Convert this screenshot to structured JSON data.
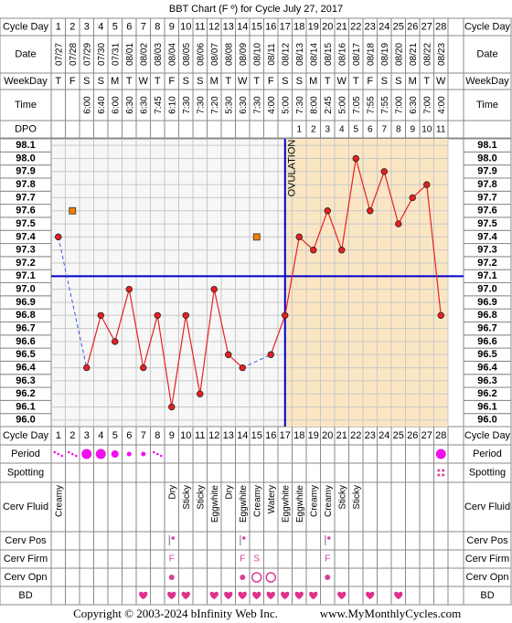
{
  "chart_data": {
    "type": "line",
    "title": "BBT Chart (F º) for Cycle July 27, 2017",
    "labels": {
      "cycle_day": "Cycle Day",
      "date": "Date",
      "weekday": "WeekDay",
      "time": "Time",
      "dpo": "DPO",
      "period": "Period",
      "spotting": "Spotting",
      "cerv_fluid": "Cerv Fluid",
      "cerv_pos": "Cerv Pos",
      "cerv_firm": "Cerv Firm",
      "cerv_opn": "Cerv Opn",
      "bd": "BD"
    },
    "categories": [
      1,
      2,
      3,
      4,
      5,
      6,
      7,
      8,
      9,
      10,
      11,
      12,
      13,
      14,
      15,
      16,
      17,
      18,
      19,
      20,
      21,
      22,
      23,
      24,
      25,
      26,
      27,
      28
    ],
    "dates": [
      "07/27",
      "07/28",
      "07/29",
      "07/30",
      "07/31",
      "08/01",
      "08/02",
      "08/03",
      "08/04",
      "08/05",
      "08/06",
      "08/07",
      "08/08",
      "08/09",
      "08/10",
      "08/11",
      "08/12",
      "08/13",
      "08/14",
      "08/15",
      "08/16",
      "08/17",
      "08/18",
      "08/19",
      "08/20",
      "08/21",
      "08/22",
      "08/23"
    ],
    "weekdays": [
      "T",
      "F",
      "S",
      "S",
      "M",
      "T",
      "W",
      "T",
      "F",
      "S",
      "S",
      "M",
      "T",
      "W",
      "T",
      "F",
      "S",
      "S",
      "M",
      "T",
      "W",
      "T",
      "F",
      "S",
      "S",
      "M",
      "T",
      "W"
    ],
    "times": [
      null,
      null,
      "6:00",
      "6:40",
      "6:00",
      "6:30",
      "6:30",
      "7:45",
      "6:10",
      "7:30",
      "7:30",
      "7:20",
      "5:30",
      "6:30",
      "7:30",
      "4:00",
      "5:00",
      "7:30",
      "8:00",
      "2:45",
      "5:00",
      "7:05",
      "7:55",
      "7:55",
      "7:00",
      "6:30",
      "7:00",
      "4:00"
    ],
    "dpo": [
      null,
      null,
      null,
      null,
      null,
      null,
      null,
      null,
      null,
      null,
      null,
      null,
      null,
      null,
      null,
      null,
      null,
      1,
      2,
      3,
      4,
      5,
      6,
      7,
      8,
      9,
      10,
      11
    ],
    "values": [
      97.4,
      null,
      96.4,
      96.8,
      96.6,
      97.0,
      96.4,
      96.8,
      96.1,
      96.8,
      96.2,
      97.0,
      96.5,
      96.4,
      null,
      96.5,
      96.8,
      97.4,
      97.3,
      97.6,
      97.3,
      98.0,
      97.6,
      97.9,
      97.5,
      97.7,
      97.8,
      96.8
    ],
    "color": "#e82020",
    "discarded": [
      null,
      97.6,
      null,
      null,
      null,
      null,
      null,
      null,
      null,
      null,
      null,
      null,
      null,
      null,
      97.4,
      null,
      null,
      null,
      null,
      null,
      null,
      null,
      null,
      null,
      null,
      null,
      null,
      null
    ],
    "discarded_color": "#f08000",
    "coverline": 97.1,
    "coverline_color": "#0000cc",
    "ovulation_day": 17,
    "ovulation_label": "OVULATION",
    "ylim": [
      95.95,
      98.15
    ],
    "yticks": [
      {
        "value": 96.0,
        "label": "96.0"
      },
      96.1,
      96.2,
      96.3,
      96.4,
      96.5,
      96.6,
      96.7,
      96.8,
      96.9,
      {
        "value": 97.0,
        "label": "97.0"
      },
      97.1,
      97.2,
      97.3,
      97.4,
      97.5,
      97.6,
      97.7,
      97.8,
      97.9,
      {
        "value": 98.0,
        "label": "98.0"
      },
      98.1
    ],
    "grid": true,
    "period": [
      1,
      1,
      4,
      4,
      3,
      2,
      2,
      1,
      null,
      null,
      null,
      null,
      null,
      null,
      null,
      null,
      null,
      null,
      null,
      null,
      null,
      null,
      null,
      null,
      null,
      null,
      null,
      4
    ],
    "period_color": "#ee11ee",
    "spotting": [
      null,
      null,
      null,
      null,
      null,
      null,
      null,
      null,
      null,
      null,
      null,
      null,
      null,
      null,
      null,
      null,
      null,
      null,
      null,
      null,
      null,
      null,
      null,
      null,
      null,
      null,
      null,
      1
    ],
    "cerv_fluid": [
      "Creamy",
      null,
      null,
      null,
      null,
      null,
      null,
      null,
      "Dry",
      "Sticky",
      "Sticky",
      "Eggwhite",
      "Dry",
      "Eggwhite",
      "Creamy",
      "Watery",
      "Eggwhite",
      "Eggwhite",
      "Creamy",
      "Creamy",
      "Sticky",
      "Sticky",
      null,
      null,
      null,
      null,
      null,
      null
    ],
    "cerv_pos": [
      null,
      null,
      null,
      null,
      null,
      null,
      null,
      null,
      1,
      null,
      null,
      null,
      null,
      1,
      null,
      null,
      null,
      null,
      null,
      1,
      null,
      null,
      null,
      null,
      null,
      null,
      null,
      null
    ],
    "cerv_firm": [
      null,
      null,
      null,
      null,
      null,
      null,
      null,
      null,
      "F",
      null,
      null,
      null,
      null,
      "F",
      "S",
      null,
      null,
      null,
      null,
      "F",
      null,
      null,
      null,
      null,
      null,
      null,
      null,
      null
    ],
    "cerv_opn": [
      null,
      null,
      null,
      null,
      null,
      null,
      null,
      null,
      1,
      null,
      null,
      null,
      null,
      1,
      2,
      2,
      null,
      null,
      null,
      1,
      null,
      null,
      null,
      null,
      null,
      null,
      null,
      null
    ],
    "bd": [
      null,
      null,
      null,
      null,
      null,
      null,
      1,
      null,
      1,
      1,
      null,
      1,
      1,
      1,
      1,
      1,
      1,
      1,
      1,
      null,
      1,
      null,
      1,
      null,
      1,
      null,
      null,
      null
    ],
    "copyright": "Copyright © 2003-2024 bInfinity Web Inc.",
    "website": "www.MyMonthlyCycles.com"
  }
}
